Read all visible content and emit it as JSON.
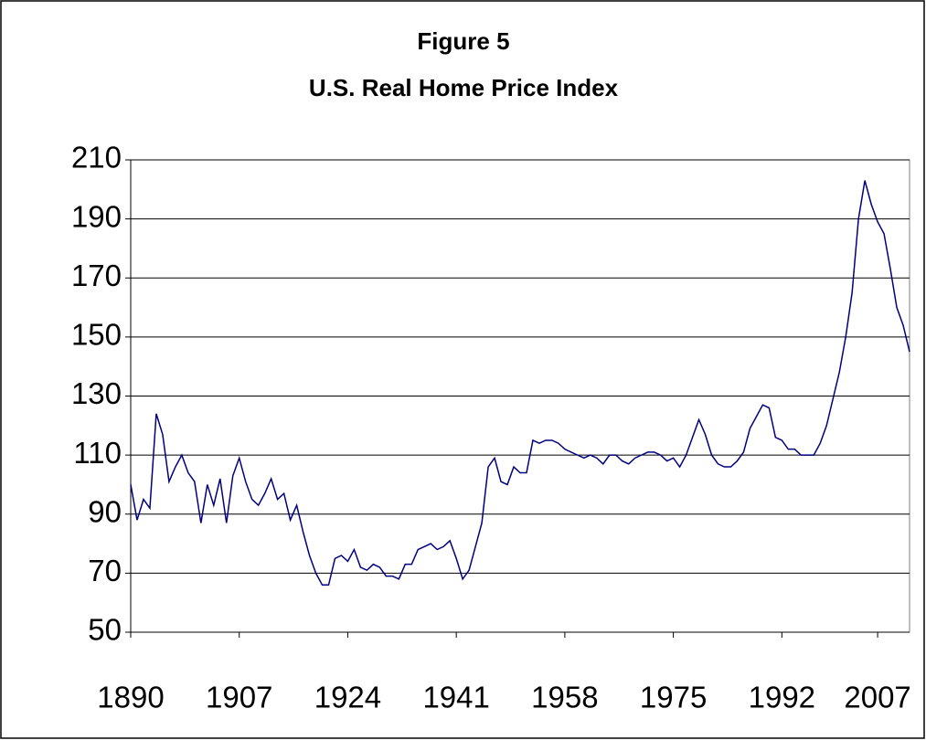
{
  "chart_data": {
    "type": "line",
    "title": "Figure 5",
    "subtitle": "U.S. Real Home Price Index",
    "x": [
      1890,
      1891,
      1892,
      1893,
      1894,
      1895,
      1896,
      1897,
      1898,
      1899,
      1900,
      1901,
      1902,
      1903,
      1904,
      1905,
      1906,
      1907,
      1908,
      1909,
      1910,
      1911,
      1912,
      1913,
      1914,
      1915,
      1916,
      1917,
      1918,
      1919,
      1920,
      1921,
      1922,
      1923,
      1924,
      1925,
      1926,
      1927,
      1928,
      1929,
      1930,
      1931,
      1932,
      1933,
      1934,
      1935,
      1936,
      1937,
      1938,
      1939,
      1940,
      1941,
      1942,
      1943,
      1944,
      1945,
      1946,
      1947,
      1948,
      1949,
      1950,
      1951,
      1952,
      1953,
      1954,
      1955,
      1956,
      1957,
      1958,
      1959,
      1960,
      1961,
      1962,
      1963,
      1964,
      1965,
      1966,
      1967,
      1968,
      1969,
      1970,
      1971,
      1972,
      1973,
      1974,
      1975,
      1976,
      1977,
      1978,
      1979,
      1980,
      1981,
      1982,
      1983,
      1984,
      1985,
      1986,
      1987,
      1988,
      1989,
      1990,
      1991,
      1992,
      1993,
      1994,
      1995,
      1996,
      1997,
      1998,
      1999,
      2000,
      2001,
      2002,
      2003,
      2004,
      2005,
      2006,
      2007,
      2008,
      2009,
      2010,
      2011,
      2012
    ],
    "series": [
      {
        "color": "#000080",
        "values": [
          100,
          88,
          95,
          92,
          124,
          117,
          101,
          106,
          110,
          104,
          101,
          87,
          100,
          93,
          102,
          87,
          103,
          109,
          101,
          95,
          93,
          97,
          102,
          95,
          97,
          88,
          93,
          84,
          76,
          70,
          66,
          66,
          75,
          76,
          74,
          78,
          72,
          71,
          73,
          72,
          69,
          69,
          68,
          73,
          73,
          78,
          79,
          80,
          78,
          79,
          81,
          75,
          68,
          71,
          79,
          87,
          106,
          109,
          101,
          100,
          106,
          104,
          104,
          115,
          114,
          115,
          115,
          114,
          112,
          111,
          110,
          109,
          110,
          109,
          107,
          110,
          110,
          108,
          107,
          109,
          110,
          111,
          111,
          110,
          108,
          109,
          106,
          110,
          116,
          122,
          117,
          110,
          107,
          106,
          106,
          108,
          111,
          119,
          123,
          127,
          126,
          116,
          115,
          112,
          112,
          110,
          110,
          110,
          114,
          120,
          129,
          138,
          150,
          165,
          190,
          203,
          195,
          189,
          185,
          173,
          160,
          154,
          145
        ]
      }
    ],
    "xlim": [
      1890,
      2012
    ],
    "xticks": [
      1890,
      1907,
      1924,
      1941,
      1958,
      1975,
      1992,
      2007
    ],
    "ylim": [
      50,
      210
    ],
    "yticks": [
      50,
      70,
      90,
      110,
      130,
      150,
      170,
      190,
      210
    ],
    "grid": true
  }
}
